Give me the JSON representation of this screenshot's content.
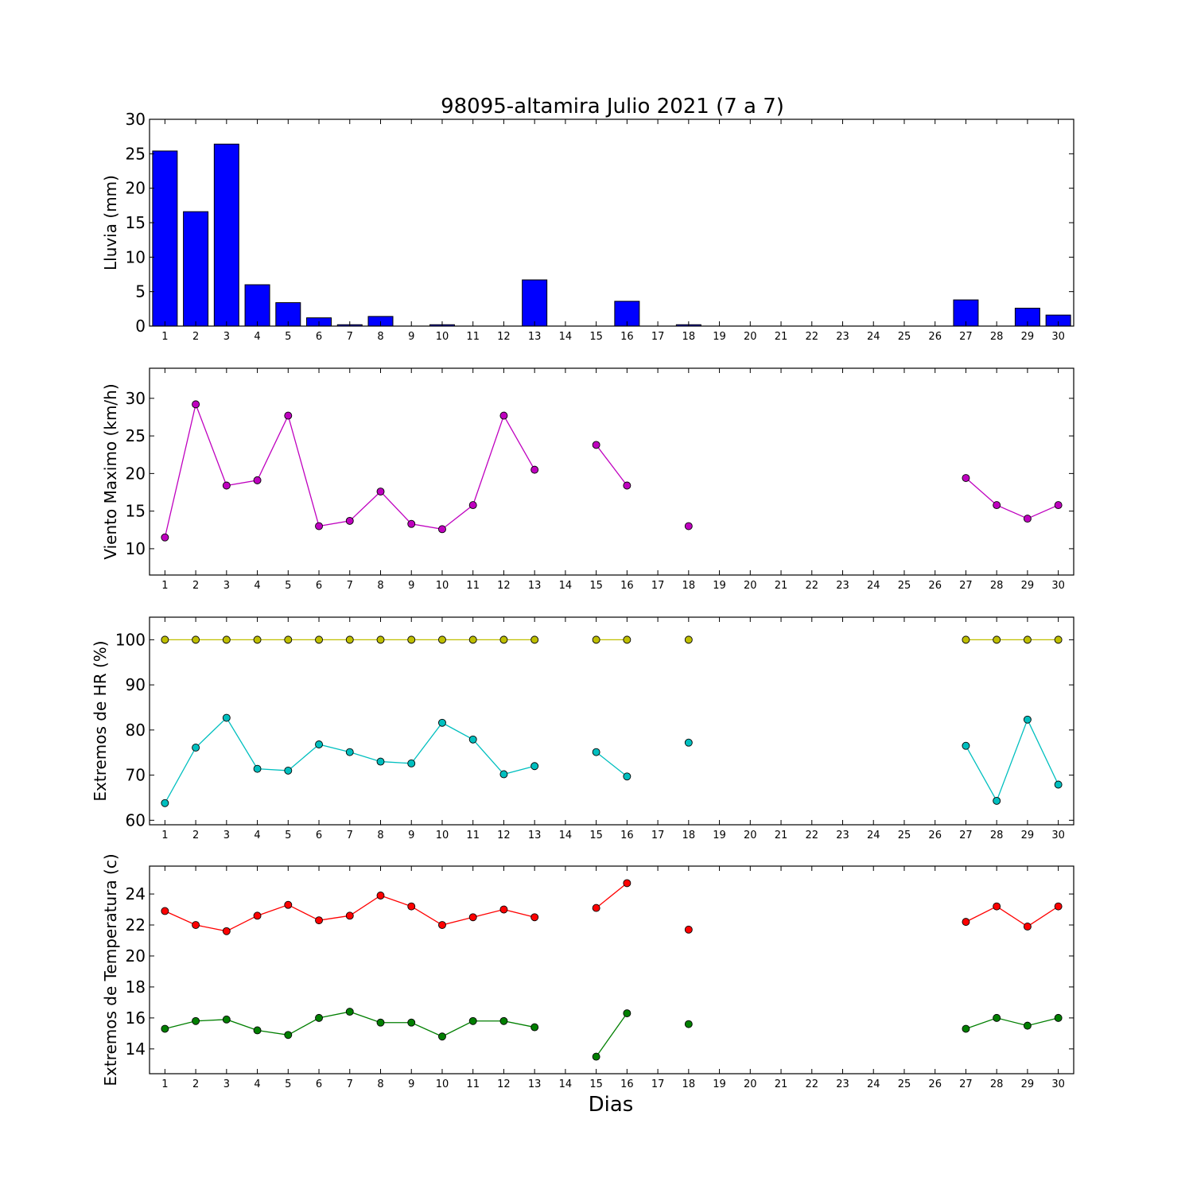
{
  "title": "98095-altamira Julio 2021  (7 a 7)",
  "xlabel": "Dias",
  "chart_data": [
    {
      "type": "bar",
      "ylabel": "Lluvia (mm)",
      "categories": [
        "1",
        "2",
        "3",
        "4",
        "5",
        "6",
        "7",
        "8",
        "9",
        "10",
        "11",
        "12",
        "13",
        "14",
        "15",
        "16",
        "17",
        "18",
        "19",
        "20",
        "21",
        "22",
        "23",
        "24",
        "25",
        "26",
        "27",
        "28",
        "29",
        "30"
      ],
      "values": [
        25.4,
        16.6,
        26.4,
        6.0,
        3.4,
        1.2,
        0.2,
        1.4,
        0,
        0.2,
        0,
        0,
        6.7,
        0,
        0,
        3.6,
        0,
        0.2,
        0,
        0,
        0,
        0,
        0,
        0,
        0,
        0,
        3.8,
        0,
        2.6,
        1.6
      ],
      "ylim": [
        0,
        30
      ],
      "yticks": [
        0,
        5,
        10,
        15,
        20,
        25,
        30
      ],
      "series_color": "#0000ff"
    },
    {
      "type": "line",
      "ylabel": "Viento Maximo (km/h)",
      "categories": [
        "1",
        "2",
        "3",
        "4",
        "5",
        "6",
        "7",
        "8",
        "9",
        "10",
        "11",
        "12",
        "13",
        "14",
        "15",
        "16",
        "17",
        "18",
        "19",
        "20",
        "21",
        "22",
        "23",
        "24",
        "25",
        "26",
        "27",
        "28",
        "29",
        "30"
      ],
      "series": [
        {
          "color": "#bf00bf",
          "values": [
            11.5,
            29.2,
            18.4,
            19.1,
            27.7,
            13.0,
            13.7,
            17.6,
            13.3,
            12.6,
            15.8,
            27.7,
            20.5,
            null,
            23.8,
            18.4,
            null,
            13.0,
            null,
            null,
            null,
            null,
            null,
            null,
            null,
            null,
            19.4,
            15.8,
            14.0,
            15.8
          ]
        }
      ],
      "ylim": [
        6.5,
        34
      ],
      "yticks": [
        10,
        15,
        20,
        25,
        30
      ]
    },
    {
      "type": "line",
      "ylabel": "Extremos de HR (%)",
      "categories": [
        "1",
        "2",
        "3",
        "4",
        "5",
        "6",
        "7",
        "8",
        "9",
        "10",
        "11",
        "12",
        "13",
        "14",
        "15",
        "16",
        "17",
        "18",
        "19",
        "20",
        "21",
        "22",
        "23",
        "24",
        "25",
        "26",
        "27",
        "28",
        "29",
        "30"
      ],
      "series": [
        {
          "color": "#bfbf00",
          "values": [
            100,
            100,
            100,
            100,
            100,
            100,
            100,
            100,
            100,
            100,
            100,
            100,
            100,
            null,
            100,
            100,
            null,
            100,
            null,
            null,
            null,
            null,
            null,
            null,
            null,
            null,
            100,
            100,
            100,
            100
          ]
        },
        {
          "color": "#00bfbf",
          "values": [
            63.8,
            76.1,
            82.7,
            71.4,
            71.0,
            76.8,
            75.1,
            73.0,
            72.6,
            81.6,
            77.9,
            70.2,
            72.0,
            null,
            75.1,
            69.7,
            null,
            77.2,
            null,
            null,
            null,
            null,
            null,
            null,
            null,
            null,
            76.5,
            64.3,
            82.3,
            67.9
          ]
        }
      ],
      "ylim": [
        59,
        105
      ],
      "yticks": [
        60,
        70,
        80,
        90,
        100
      ]
    },
    {
      "type": "line",
      "ylabel": "Extremos de Temperatura (c)",
      "categories": [
        "1",
        "2",
        "3",
        "4",
        "5",
        "6",
        "7",
        "8",
        "9",
        "10",
        "11",
        "12",
        "13",
        "14",
        "15",
        "16",
        "17",
        "18",
        "19",
        "20",
        "21",
        "22",
        "23",
        "24",
        "25",
        "26",
        "27",
        "28",
        "29",
        "30"
      ],
      "series": [
        {
          "color": "#ff0000",
          "values": [
            22.9,
            22.0,
            21.6,
            22.6,
            23.3,
            22.3,
            22.6,
            23.9,
            23.2,
            22.0,
            22.5,
            23.0,
            22.5,
            null,
            23.1,
            24.7,
            null,
            21.7,
            null,
            null,
            null,
            null,
            null,
            null,
            null,
            null,
            22.2,
            23.2,
            21.9,
            23.2
          ]
        },
        {
          "color": "#007f00",
          "values": [
            15.3,
            15.8,
            15.9,
            15.2,
            14.9,
            16.0,
            16.4,
            15.7,
            15.7,
            14.8,
            15.8,
            15.8,
            15.4,
            null,
            13.5,
            16.3,
            null,
            15.6,
            null,
            null,
            null,
            null,
            null,
            null,
            null,
            null,
            15.3,
            16.0,
            15.5,
            16.0
          ]
        }
      ],
      "ylim": [
        12.4,
        25.8
      ],
      "yticks": [
        14,
        16,
        18,
        20,
        22,
        24
      ]
    }
  ]
}
